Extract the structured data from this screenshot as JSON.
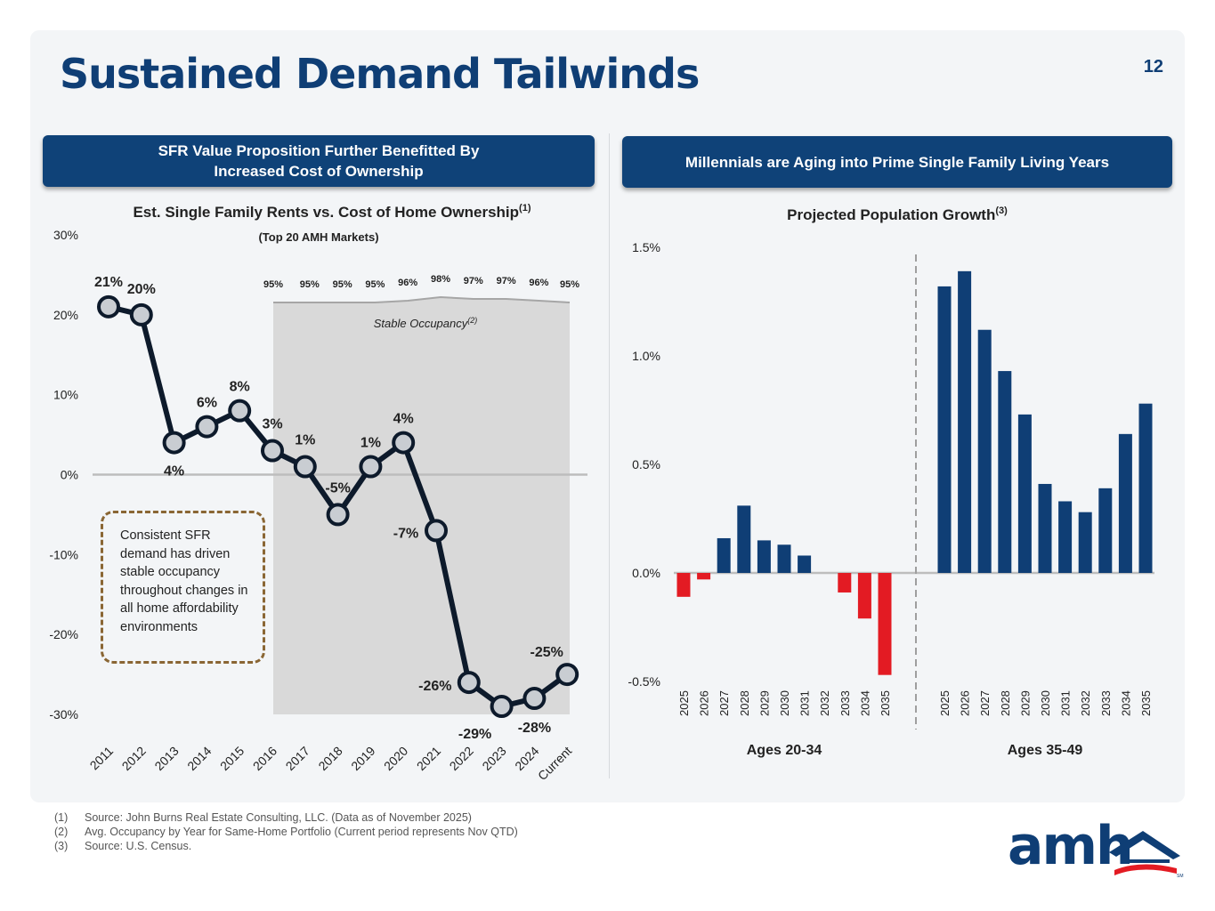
{
  "page": {
    "title": "Sustained Demand Tailwinds",
    "page_number": "12",
    "left_header_line1": "SFR Value Proposition Further Benefitted By",
    "left_header_line2": "Increased Cost of Ownership",
    "right_header": "Millennials are Aging into Prime Single Family Living Years",
    "callout": "Consistent SFR demand has driven stable occupancy throughout changes in all home affordability environments",
    "footnotes": [
      {
        "num": "(1)",
        "text": "Source: John Burns Real Estate Consulting, LLC. (Data as of November 2025)"
      },
      {
        "num": "(2)",
        "text": "Avg. Occupancy by Year for Same-Home Portfolio (Current period represents Nov QTD)"
      },
      {
        "num": "(3)",
        "text": "Source: U.S. Census."
      }
    ],
    "logo_text": "amh",
    "logo_mark": "SM",
    "colors": {
      "brand": "#0f3e75",
      "negative": "#e31b23",
      "line": "#0d1a2b",
      "callout_border": "#8a6634"
    }
  },
  "chart_data": [
    {
      "type": "line",
      "title": "Est. Single Family Rents vs. Cost of Home Ownership",
      "title_sup": "(1)",
      "subtitle": "(Top 20 AMH Markets)",
      "categories": [
        "2011",
        "2012",
        "2013",
        "2014",
        "2015",
        "2016",
        "2017",
        "2018",
        "2019",
        "2020",
        "2021",
        "2022",
        "2023",
        "2024",
        "Current"
      ],
      "series": [
        {
          "values": [
            21,
            20,
            4,
            6,
            8,
            3,
            1,
            -5,
            1,
            4,
            -7,
            -26,
            -29,
            -28,
            -25
          ],
          "labels": [
            "21%",
            "20%",
            "4%",
            "6%",
            "8%",
            "3%",
            "1%",
            "-5%",
            "1%",
            "4%",
            "-7%",
            "-26%",
            "-29%",
            "-28%",
            "-25%"
          ]
        }
      ],
      "y_ticks": [
        "30%",
        "20%",
        "10%",
        "0%",
        "-10%",
        "-20%",
        "-30%"
      ],
      "ylim": [
        -30,
        30
      ],
      "occupancy": {
        "label": "Stable Occupancy",
        "label_sup": "(2)",
        "categories": [
          "2016",
          "2017",
          "2018",
          "2019",
          "2020",
          "2021",
          "2022",
          "2023",
          "2024",
          "Current"
        ],
        "values": [
          95,
          95,
          95,
          95,
          96,
          98,
          97,
          97,
          96,
          95
        ],
        "labels": [
          "95%",
          "95%",
          "95%",
          "95%",
          "96%",
          "98%",
          "97%",
          "97%",
          "96%",
          "95%"
        ]
      }
    },
    {
      "type": "bar",
      "title": "Projected Population Growth",
      "title_sup": "(3)",
      "ylim": [
        -0.5,
        1.5
      ],
      "y_ticks": [
        "1.5%",
        "1.0%",
        "0.5%",
        "0.0%",
        "-0.5%"
      ],
      "groups": [
        {
          "name": "Ages 20-34",
          "categories": [
            "2025",
            "2026",
            "2027",
            "2028",
            "2029",
            "2030",
            "2031",
            "2032",
            "2033",
            "2034",
            "2035"
          ],
          "values": [
            -0.11,
            -0.03,
            0.16,
            0.31,
            0.15,
            0.13,
            0.08,
            0.0,
            -0.09,
            -0.21,
            -0.47
          ]
        },
        {
          "name": "Ages 35-49",
          "categories": [
            "2025",
            "2026",
            "2027",
            "2028",
            "2029",
            "2030",
            "2031",
            "2032",
            "2033",
            "2034",
            "2035"
          ],
          "values": [
            1.32,
            1.39,
            1.12,
            0.93,
            0.73,
            0.41,
            0.33,
            0.28,
            0.39,
            0.64,
            0.78
          ]
        }
      ]
    }
  ]
}
